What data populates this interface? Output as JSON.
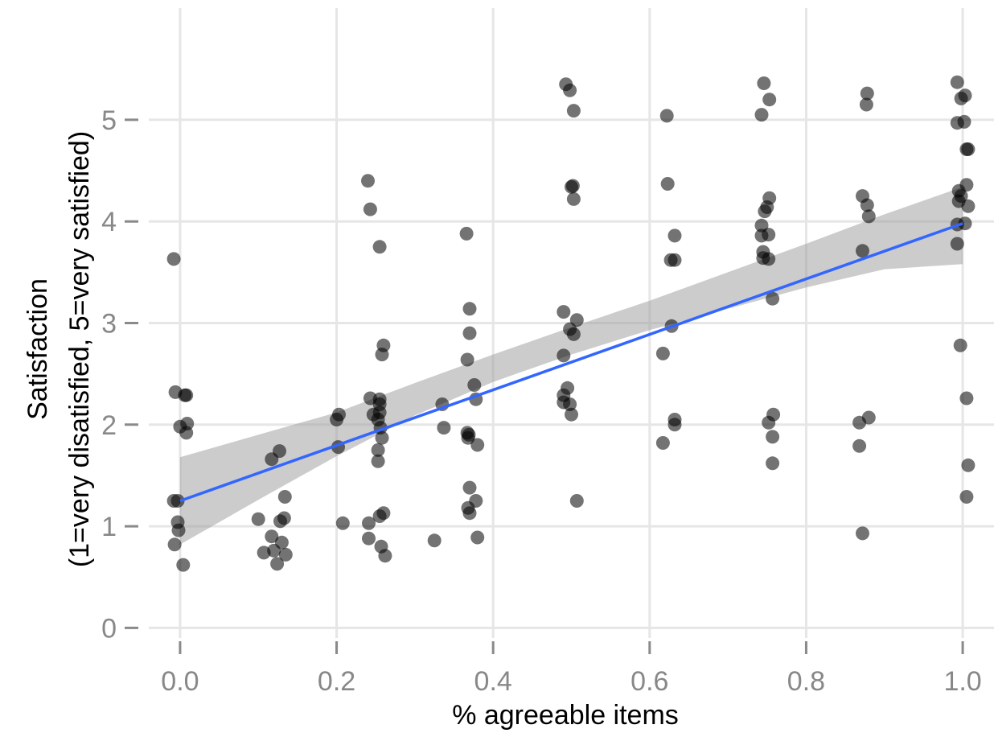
{
  "chart_data": {
    "type": "scatter",
    "xlabel": "% agreeable items",
    "ylabel_line1": "Satisfaction",
    "ylabel_line2": "(1=very disatisfied, 5=very satisfied)",
    "xlim": [
      -0.04,
      1.04
    ],
    "ylim": [
      -0.1,
      6.1
    ],
    "x_ticks": [
      0.0,
      0.2,
      0.4,
      0.6,
      0.8,
      1.0
    ],
    "x_tick_labels": [
      "0.0",
      "0.2",
      "0.4",
      "0.6",
      "0.8",
      "1.0"
    ],
    "y_ticks": [
      0,
      1,
      2,
      3,
      4,
      5
    ],
    "y_tick_labels": [
      "0",
      "1",
      "2",
      "3",
      "4",
      "5"
    ],
    "grid": true,
    "point_color": "#000000",
    "fit_line_color": "#3366ff",
    "ribbon_color": "#999999",
    "points": [
      [
        -0.008,
        3.63
      ],
      [
        -0.006,
        2.32
      ],
      [
        -0.008,
        1.25
      ],
      [
        -0.003,
        1.25
      ],
      [
        -0.003,
        1.04
      ],
      [
        -0.002,
        0.96
      ],
      [
        -0.007,
        0.82
      ],
      [
        0.0,
        1.98
      ],
      [
        0.006,
        2.29
      ],
      [
        0.008,
        2.29
      ],
      [
        0.009,
        2.01
      ],
      [
        0.008,
        1.92
      ],
      [
        0.004,
        0.62
      ],
      [
        0.1,
        1.07
      ],
      [
        0.107,
        0.74
      ],
      [
        0.117,
        1.66
      ],
      [
        0.117,
        0.9
      ],
      [
        0.12,
        0.76
      ],
      [
        0.124,
        0.63
      ],
      [
        0.127,
        1.74
      ],
      [
        0.128,
        1.05
      ],
      [
        0.13,
        0.84
      ],
      [
        0.133,
        1.08
      ],
      [
        0.134,
        1.29
      ],
      [
        0.135,
        0.72
      ],
      [
        0.2,
        2.05
      ],
      [
        0.203,
        2.1
      ],
      [
        0.202,
        1.78
      ],
      [
        0.208,
        1.03
      ],
      [
        0.24,
        4.4
      ],
      [
        0.243,
        4.12
      ],
      [
        0.243,
        2.26
      ],
      [
        0.247,
        2.1
      ],
      [
        0.241,
        1.03
      ],
      [
        0.241,
        0.88
      ],
      [
        0.253,
        2.05
      ],
      [
        0.253,
        1.75
      ],
      [
        0.253,
        1.64
      ],
      [
        0.255,
        2.25
      ],
      [
        0.255,
        2.2
      ],
      [
        0.255,
        2.12
      ],
      [
        0.255,
        3.75
      ],
      [
        0.256,
        1.97
      ],
      [
        0.258,
        1.87
      ],
      [
        0.258,
        2.69
      ],
      [
        0.26,
        2.78
      ],
      [
        0.255,
        1.1
      ],
      [
        0.26,
        1.13
      ],
      [
        0.257,
        0.8
      ],
      [
        0.262,
        0.71
      ],
      [
        0.325,
        0.86
      ],
      [
        0.335,
        2.2
      ],
      [
        0.337,
        1.97
      ],
      [
        0.366,
        3.88
      ],
      [
        0.367,
        2.64
      ],
      [
        0.367,
        1.92
      ],
      [
        0.368,
        1.87
      ],
      [
        0.369,
        1.9
      ],
      [
        0.37,
        3.14
      ],
      [
        0.37,
        2.9
      ],
      [
        0.37,
        1.38
      ],
      [
        0.368,
        1.18
      ],
      [
        0.37,
        1.13
      ],
      [
        0.376,
        2.39
      ],
      [
        0.378,
        2.25
      ],
      [
        0.378,
        1.25
      ],
      [
        0.38,
        1.8
      ],
      [
        0.38,
        0.89
      ],
      [
        0.493,
        5.35
      ],
      [
        0.498,
        5.29
      ],
      [
        0.503,
        5.09
      ],
      [
        0.5,
        4.34
      ],
      [
        0.502,
        4.35
      ],
      [
        0.503,
        4.22
      ],
      [
        0.49,
        3.11
      ],
      [
        0.507,
        3.03
      ],
      [
        0.498,
        2.94
      ],
      [
        0.503,
        2.89
      ],
      [
        0.49,
        2.68
      ],
      [
        0.495,
        2.36
      ],
      [
        0.49,
        2.29
      ],
      [
        0.49,
        2.22
      ],
      [
        0.498,
        2.2
      ],
      [
        0.5,
        2.1
      ],
      [
        0.507,
        1.25
      ],
      [
        0.622,
        5.04
      ],
      [
        0.623,
        4.37
      ],
      [
        0.632,
        3.86
      ],
      [
        0.627,
        3.62
      ],
      [
        0.632,
        3.62
      ],
      [
        0.628,
        2.97
      ],
      [
        0.617,
        2.7
      ],
      [
        0.632,
        2.05
      ],
      [
        0.632,
        2.0
      ],
      [
        0.617,
        1.82
      ],
      [
        0.746,
        5.36
      ],
      [
        0.743,
        5.05
      ],
      [
        0.753,
        5.2
      ],
      [
        0.753,
        4.23
      ],
      [
        0.75,
        4.14
      ],
      [
        0.747,
        4.1
      ],
      [
        0.743,
        3.96
      ],
      [
        0.743,
        3.86
      ],
      [
        0.752,
        3.87
      ],
      [
        0.745,
        3.7
      ],
      [
        0.745,
        3.64
      ],
      [
        0.752,
        3.63
      ],
      [
        0.757,
        3.24
      ],
      [
        0.752,
        2.02
      ],
      [
        0.758,
        2.1
      ],
      [
        0.757,
        1.88
      ],
      [
        0.757,
        1.62
      ],
      [
        0.878,
        5.26
      ],
      [
        0.877,
        5.15
      ],
      [
        0.872,
        4.25
      ],
      [
        0.878,
        4.16
      ],
      [
        0.88,
        4.05
      ],
      [
        0.872,
        3.71
      ],
      [
        0.868,
        2.02
      ],
      [
        0.88,
        2.07
      ],
      [
        0.868,
        1.79
      ],
      [
        0.872,
        0.93
      ],
      [
        0.993,
        5.37
      ],
      [
        0.998,
        5.21
      ],
      [
        1.003,
        5.24
      ],
      [
        0.993,
        4.97
      ],
      [
        1.002,
        4.98
      ],
      [
        1.005,
        4.71
      ],
      [
        1.007,
        4.71
      ],
      [
        1.005,
        4.36
      ],
      [
        0.995,
        4.3
      ],
      [
        0.998,
        4.25
      ],
      [
        0.995,
        4.2
      ],
      [
        1.007,
        4.15
      ],
      [
        0.993,
        3.97
      ],
      [
        1.003,
        3.98
      ],
      [
        0.993,
        3.78
      ],
      [
        0.997,
        2.78
      ],
      [
        1.005,
        2.26
      ],
      [
        1.007,
        1.6
      ],
      [
        1.005,
        1.29
      ]
    ],
    "fit": {
      "x": [
        0.0,
        1.0
      ],
      "y": [
        1.25,
        3.98
      ]
    },
    "ribbon": {
      "x": [
        0.0,
        0.1,
        0.2,
        0.3,
        0.4,
        0.5,
        0.6,
        0.7,
        0.8,
        0.9,
        1.0
      ],
      "lower": [
        0.82,
        1.26,
        1.69,
        2.09,
        2.42,
        2.69,
        2.93,
        3.14,
        3.35,
        3.53,
        3.58
      ],
      "upper": [
        1.68,
        1.9,
        2.12,
        2.41,
        2.69,
        2.96,
        3.22,
        3.5,
        3.78,
        4.07,
        4.34
      ]
    }
  }
}
